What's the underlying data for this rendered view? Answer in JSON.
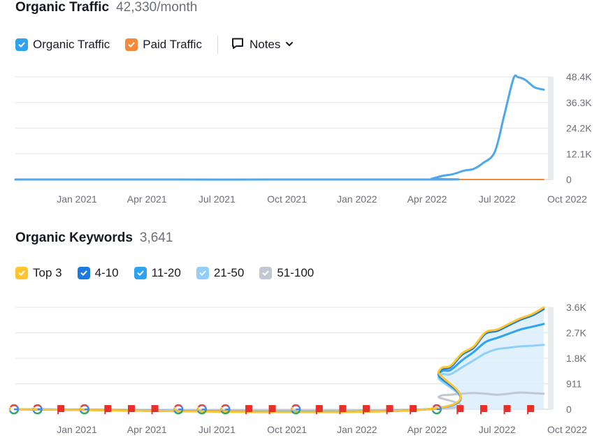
{
  "traffic": {
    "title": "Organic Traffic",
    "value": "42,330/month",
    "legend": [
      {
        "label": "Organic Traffic",
        "color": "#2fa3ef"
      },
      {
        "label": "Paid Traffic",
        "color": "#f6883b"
      }
    ],
    "notes_label": "Notes"
  },
  "keywords": {
    "title": "Organic Keywords",
    "value": "3,641",
    "legend": [
      {
        "label": "Top 3",
        "color": "#ffc42e"
      },
      {
        "label": "4-10",
        "color": "#1a7ae0"
      },
      {
        "label": "11-20",
        "color": "#2fa3ef"
      },
      {
        "label": "21-50",
        "color": "#8fd0fa"
      },
      {
        "label": "51-100",
        "color": "#c2c7d3"
      }
    ]
  },
  "chart_data": [
    {
      "type": "line",
      "title": "Organic Traffic",
      "x_ticks": [
        "Jan 2021",
        "Apr 2021",
        "Jul 2021",
        "Oct 2021",
        "Jan 2022",
        "Apr 2022",
        "Jul 2022",
        "Oct 2022"
      ],
      "y_ticks": [
        "48.4K",
        "36.3K",
        "24.2K",
        "12.1K",
        "0"
      ],
      "ylim": [
        0,
        48400
      ],
      "xlim": [
        0,
        23.3
      ],
      "series": [
        {
          "name": "Organic Traffic",
          "color": "#4ea7ea",
          "x": [
            0,
            18,
            18.2,
            18.7,
            19.1,
            19.6,
            20.0,
            20.4,
            20.9,
            21.3,
            21.7,
            21.9,
            22.2,
            22.6,
            23.0
          ],
          "values": [
            0,
            0,
            400,
            1800,
            2500,
            4200,
            5000,
            7800,
            13000,
            30000,
            47500,
            48200,
            47000,
            43500,
            42330
          ]
        },
        {
          "name": "Paid Traffic",
          "color": "#f6883b",
          "x": [
            0,
            23.0
          ],
          "values": [
            0,
            0
          ]
        }
      ]
    },
    {
      "type": "area",
      "title": "Organic Keywords",
      "x_ticks": [
        "Jan 2021",
        "Apr 2021",
        "Jul 2021",
        "Oct 2021",
        "Jan 2022",
        "Apr 2022",
        "Jul 2022",
        "Oct 2022"
      ],
      "y_ticks": [
        "3.6K",
        "2.7K",
        "1.8K",
        "911",
        "0"
      ],
      "ylim": [
        0,
        3644
      ],
      "xlim": [
        0,
        23.3
      ],
      "x": [
        0,
        18,
        18.5,
        19.0,
        19.5,
        20.0,
        20.5,
        21.0,
        21.5,
        22.0,
        22.5,
        23.0
      ],
      "series": [
        {
          "name": "Top 3",
          "color": "#ffc42e",
          "values": [
            0,
            0,
            1350,
            1550,
            2000,
            2250,
            2750,
            2850,
            3050,
            3250,
            3400,
            3641
          ]
        },
        {
          "name": "4-10",
          "color": "#1a7ae0",
          "values": [
            0,
            0,
            1300,
            1500,
            1950,
            2200,
            2700,
            2800,
            3000,
            3200,
            3350,
            3580
          ]
        },
        {
          "name": "11-20",
          "color": "#2fa3ef",
          "values": [
            0,
            0,
            1250,
            1400,
            1750,
            2050,
            2400,
            2550,
            2700,
            2850,
            2950,
            3050
          ]
        },
        {
          "name": "21-50",
          "color": "#8fd0fa",
          "values": [
            0,
            0,
            1150,
            1250,
            1500,
            1750,
            2000,
            2150,
            2200,
            2250,
            2270,
            2300
          ]
        },
        {
          "name": "51-100",
          "color": "#c2c7d3",
          "values": [
            0,
            0,
            450,
            520,
            560,
            580,
            560,
            520,
            560,
            600,
            580,
            560
          ]
        }
      ],
      "markers": [
        {
          "type": "google",
          "x": 0
        },
        {
          "type": "google",
          "x": 1
        },
        {
          "type": "flag",
          "x": 2
        },
        {
          "type": "google",
          "x": 3
        },
        {
          "type": "flag",
          "x": 4
        },
        {
          "type": "flag",
          "x": 5
        },
        {
          "type": "flag",
          "x": 6
        },
        {
          "type": "google",
          "x": 7
        },
        {
          "type": "google",
          "x": 8
        },
        {
          "type": "google",
          "x": 9
        },
        {
          "type": "flag",
          "x": 10
        },
        {
          "type": "flag",
          "x": 11
        },
        {
          "type": "google",
          "x": 12
        },
        {
          "type": "flag",
          "x": 13
        },
        {
          "type": "flag",
          "x": 14
        },
        {
          "type": "flag",
          "x": 15
        },
        {
          "type": "flag",
          "x": 16
        },
        {
          "type": "flag",
          "x": 17
        },
        {
          "type": "google",
          "x": 18
        },
        {
          "type": "flag",
          "x": 19
        },
        {
          "type": "flag",
          "x": 20
        },
        {
          "type": "flag",
          "x": 21
        },
        {
          "type": "flag",
          "x": 22
        }
      ]
    }
  ]
}
